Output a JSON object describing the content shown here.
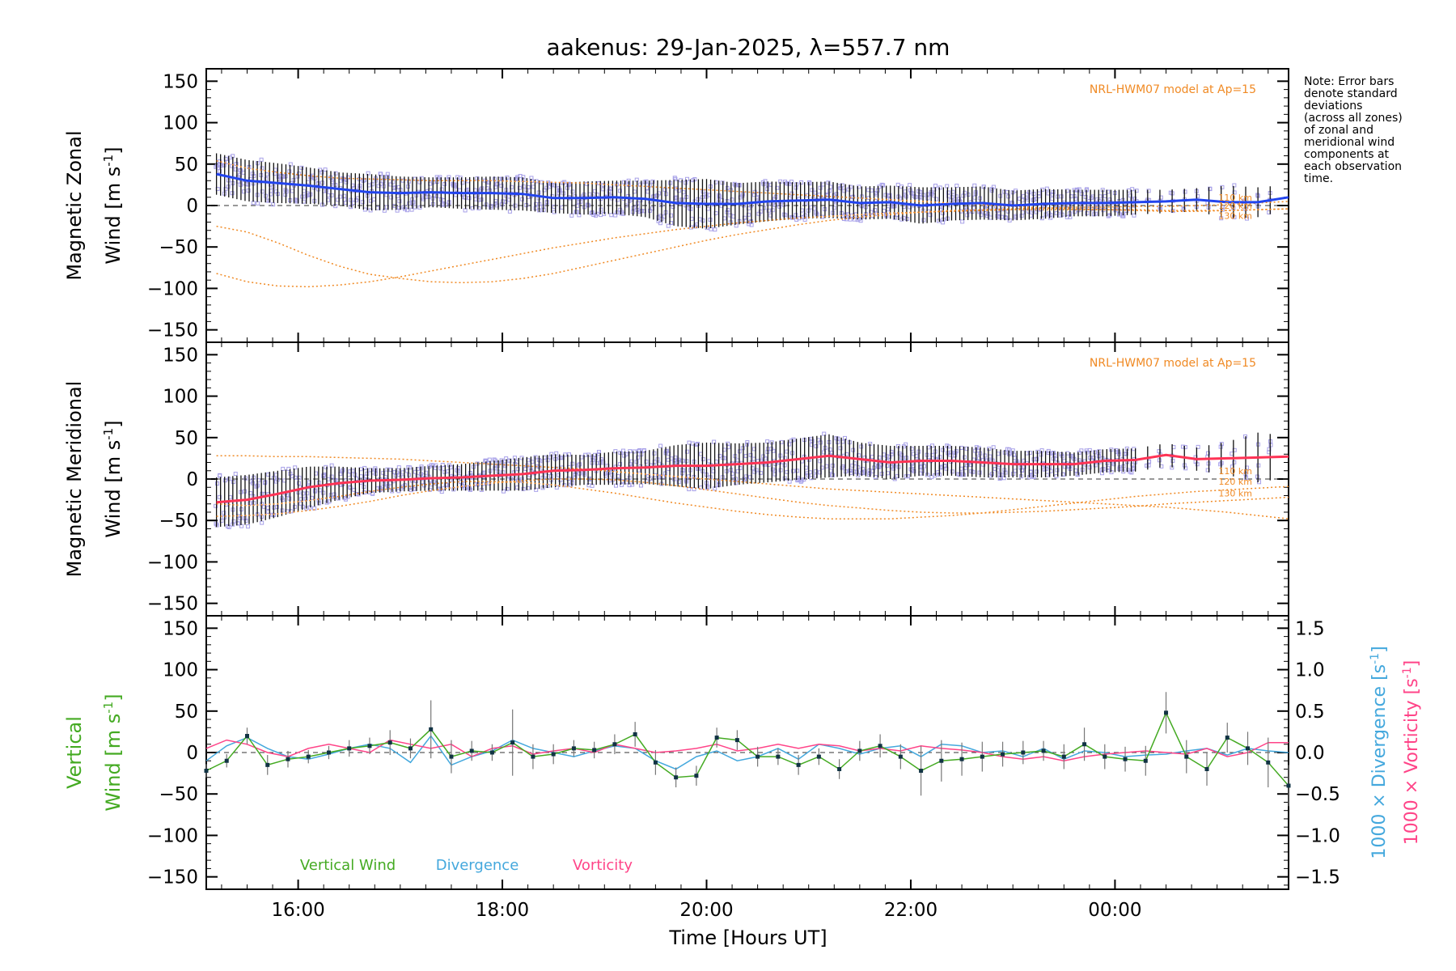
{
  "title": "aakenus: 29-Jan-2025, λ=557.7 nm",
  "note_lines": [
    "Note: Error bars",
    "denote standard",
    "deviations",
    "(across all zones)",
    "of zonal and",
    "meridional wind",
    "components at",
    "each observation",
    "time."
  ],
  "xaxis": {
    "label": "Time [Hours UT]",
    "range": [
      15.1,
      25.7
    ],
    "ticks": [
      16,
      18,
      20,
      22,
      24
    ],
    "tick_labels": [
      "16:00",
      "18:00",
      "20:00",
      "22:00",
      "00:00"
    ]
  },
  "colors": {
    "zonal": "#2244ee",
    "meridional": "#ff3355",
    "model": "#f08a24",
    "scatter": "#a7a0e8",
    "vertical": "#44aa22",
    "divergence": "#44a8dd",
    "vorticity": "#ff4488",
    "errbar": "#111111"
  },
  "chart_data": [
    {
      "type": "line",
      "panel": "zonal",
      "ylabel_line1": "Magnetic Zonal",
      "ylabel_line2": "Wind [m s",
      "ylabel_sup": "-1",
      "ylim": [
        -165,
        165
      ],
      "yticks": [
        -150,
        -100,
        -50,
        0,
        50,
        100,
        150
      ],
      "model_label": "NRL-HWM07 model at Ap=15",
      "model_alt_labels": [
        "110 km",
        "120 km",
        "130 km"
      ],
      "x": [
        15.2,
        15.5,
        15.8,
        16.1,
        16.4,
        16.7,
        17.0,
        17.3,
        17.6,
        17.9,
        18.2,
        18.5,
        18.8,
        19.1,
        19.4,
        19.7,
        20.0,
        20.3,
        20.6,
        20.9,
        21.2,
        21.5,
        21.8,
        22.1,
        22.4,
        22.7,
        23.0,
        23.3,
        23.6,
        23.9,
        24.2,
        24.5,
        24.8,
        25.1,
        25.4,
        25.7
      ],
      "series": [
        {
          "name": "Zonal wind",
          "values": [
            38,
            30,
            27,
            24,
            20,
            16,
            15,
            16,
            15,
            15,
            14,
            9,
            9,
            10,
            8,
            3,
            2,
            2,
            5,
            6,
            7,
            3,
            4,
            0,
            2,
            3,
            0,
            2,
            3,
            3,
            4,
            5,
            7,
            4,
            4,
            10
          ],
          "err": [
            25,
            25,
            24,
            22,
            20,
            22,
            20,
            18,
            19,
            20,
            20,
            18,
            20,
            20,
            22,
            28,
            30,
            25,
            24,
            22,
            22,
            20,
            20,
            22,
            20,
            20,
            18,
            18,
            16,
            16,
            15,
            14,
            14,
            20,
            18,
            15
          ]
        },
        {
          "name": "HWM 110 km",
          "values": [
            -25,
            -32,
            -45,
            -60,
            -73,
            -83,
            -88,
            -92,
            -93,
            -92,
            -88,
            -82,
            -74,
            -66,
            -58,
            -50,
            -42,
            -35,
            -29,
            -23,
            -18,
            -14,
            -11,
            -8,
            -6,
            -5,
            -4,
            -3,
            -2,
            -2,
            -1,
            -1,
            0,
            1,
            3,
            5
          ]
        },
        {
          "name": "HWM 120 km",
          "values": [
            -82,
            -92,
            -97,
            -98,
            -96,
            -92,
            -86,
            -79,
            -72,
            -65,
            -58,
            -51,
            -45,
            -39,
            -34,
            -29,
            -25,
            -21,
            -18,
            -15,
            -13,
            -11,
            -9,
            -8,
            -7,
            -6,
            -5,
            -5,
            -5,
            -5,
            -5,
            -6,
            -6,
            -6,
            -5,
            -4
          ]
        },
        {
          "name": "HWM 130 km",
          "values": [
            54,
            45,
            40,
            36,
            33,
            32,
            31,
            30,
            30,
            30,
            29,
            28,
            27,
            25,
            23,
            21,
            19,
            17,
            15,
            13,
            11,
            9,
            7,
            5,
            3,
            1,
            -1,
            -3,
            -4,
            -5,
            -6,
            -7,
            -7,
            -6,
            -5,
            -4
          ]
        }
      ]
    },
    {
      "type": "line",
      "panel": "meridional",
      "ylabel_line1": "Magnetic Meridional",
      "ylabel_line2": "Wind [m s",
      "ylabel_sup": "-1",
      "ylim": [
        -165,
        165
      ],
      "yticks": [
        -150,
        -100,
        -50,
        0,
        50,
        100,
        150
      ],
      "model_label": "NRL-HWM07 model at Ap=15",
      "model_alt_labels": [
        "110 km",
        "120 km",
        "130 km"
      ],
      "x": [
        15.2,
        15.5,
        15.8,
        16.1,
        16.4,
        16.7,
        17.0,
        17.3,
        17.6,
        17.9,
        18.2,
        18.5,
        18.8,
        19.1,
        19.4,
        19.7,
        20.0,
        20.3,
        20.6,
        20.9,
        21.2,
        21.5,
        21.8,
        22.1,
        22.4,
        22.7,
        23.0,
        23.3,
        23.6,
        23.9,
        24.2,
        24.5,
        24.8,
        25.1,
        25.4,
        25.7
      ],
      "series": [
        {
          "name": "Meridional wind",
          "values": [
            -28,
            -25,
            -18,
            -10,
            -5,
            -2,
            -1,
            1,
            2,
            4,
            6,
            10,
            11,
            13,
            14,
            16,
            16,
            18,
            20,
            24,
            28,
            24,
            20,
            22,
            22,
            20,
            18,
            18,
            18,
            22,
            23,
            29,
            24,
            25,
            26,
            27
          ],
          "err": [
            30,
            30,
            28,
            25,
            20,
            15,
            14,
            15,
            16,
            18,
            20,
            20,
            18,
            20,
            20,
            25,
            28,
            25,
            24,
            25,
            26,
            20,
            20,
            18,
            18,
            18,
            16,
            16,
            14,
            14,
            14,
            14,
            14,
            20,
            30,
            25
          ]
        },
        {
          "name": "HWM 110 km",
          "values": [
            28,
            28,
            27,
            27,
            26,
            25,
            24,
            22,
            20,
            18,
            16,
            14,
            12,
            9,
            6,
            3,
            0,
            -3,
            -6,
            -9,
            -12,
            -14,
            -16,
            -18,
            -20,
            -22,
            -24,
            -26,
            -28,
            -30,
            -32,
            -34,
            -37,
            -40,
            -44,
            -48
          ]
        },
        {
          "name": "HWM 120 km",
          "values": [
            -45,
            -44,
            -42,
            -38,
            -33,
            -27,
            -20,
            -14,
            -9,
            -5,
            -2,
            0,
            0,
            -1,
            -4,
            -8,
            -13,
            -18,
            -23,
            -28,
            -32,
            -35,
            -38,
            -40,
            -41,
            -41,
            -40,
            -39,
            -37,
            -35,
            -33,
            -30,
            -28,
            -26,
            -24,
            -22
          ]
        },
        {
          "name": "HWM 130 km",
          "values": [
            -30,
            -32,
            -30,
            -26,
            -21,
            -15,
            -10,
            -6,
            -3,
            -3,
            -4,
            -7,
            -12,
            -17,
            -23,
            -29,
            -34,
            -39,
            -43,
            -46,
            -48,
            -48,
            -48,
            -46,
            -44,
            -41,
            -37,
            -33,
            -29,
            -25,
            -21,
            -18,
            -15,
            -13,
            -11,
            -9
          ]
        }
      ]
    },
    {
      "type": "line",
      "panel": "vertical",
      "ylabel_line1": "Vertical",
      "ylabel_line2": "Wind [m s",
      "ylabel_sup": "-1",
      "ylim": [
        -165,
        165
      ],
      "yticks": [
        -150,
        -100,
        -50,
        0,
        50,
        100,
        150
      ],
      "y2lim": [
        -1.65,
        1.65
      ],
      "y2ticks": [
        -1.5,
        -1.0,
        -0.5,
        0.0,
        0.5,
        1.0,
        1.5
      ],
      "y2tick_labels": [
        "−1.5",
        "−1.0",
        "−0.5",
        "0.0",
        "0.5",
        "1.0",
        "1.5"
      ],
      "y2label_div": "1000 × Divergence [s",
      "y2label_vor": "1000 × Vorticity [s",
      "y2label_sup": "-1",
      "legend": [
        "Vertical Wind",
        "Divergence",
        "Vorticity"
      ],
      "x": [
        15.1,
        15.3,
        15.5,
        15.7,
        15.9,
        16.1,
        16.3,
        16.5,
        16.7,
        16.9,
        17.1,
        17.3,
        17.5,
        17.7,
        17.9,
        18.1,
        18.3,
        18.5,
        18.7,
        18.9,
        19.1,
        19.3,
        19.5,
        19.7,
        19.9,
        20.1,
        20.3,
        20.5,
        20.7,
        20.9,
        21.1,
        21.3,
        21.5,
        21.7,
        21.9,
        22.1,
        22.3,
        22.5,
        22.7,
        22.9,
        23.1,
        23.3,
        23.5,
        23.7,
        23.9,
        24.1,
        24.3,
        24.5,
        24.7,
        24.9,
        25.1,
        25.3,
        25.5,
        25.7
      ],
      "series": [
        {
          "name": "Vertical Wind",
          "values": [
            -22,
            -10,
            20,
            -15,
            -8,
            -5,
            0,
            5,
            8,
            12,
            5,
            28,
            -5,
            2,
            0,
            12,
            -5,
            -2,
            5,
            3,
            10,
            22,
            -12,
            -30,
            -28,
            18,
            15,
            -5,
            -5,
            -15,
            -5,
            -20,
            2,
            8,
            -5,
            -22,
            -10,
            -8,
            -5,
            -2,
            0,
            2,
            -5,
            10,
            -5,
            -8,
            -10,
            48,
            -5,
            -20,
            18,
            5,
            -12,
            -40
          ],
          "err": [
            8,
            8,
            10,
            12,
            10,
            8,
            8,
            10,
            10,
            15,
            12,
            35,
            20,
            12,
            10,
            40,
            15,
            12,
            10,
            10,
            12,
            15,
            15,
            12,
            12,
            12,
            12,
            12,
            10,
            12,
            10,
            12,
            12,
            14,
            15,
            30,
            25,
            20,
            18,
            15,
            14,
            12,
            15,
            20,
            15,
            15,
            18,
            25,
            20,
            20,
            18,
            20,
            30,
            25
          ]
        },
        {
          "name": "Divergence",
          "values": [
            -0.1,
            0.08,
            0.18,
            0.05,
            -0.05,
            -0.08,
            -0.02,
            0.05,
            0.1,
            0.05,
            -0.12,
            0.2,
            -0.15,
            -0.05,
            0.02,
            0.15,
            0.05,
            0.0,
            -0.05,
            0.02,
            0.08,
            0.05,
            -0.1,
            -0.2,
            -0.05,
            0.02,
            -0.1,
            -0.05,
            0.05,
            -0.08,
            0.1,
            0.05,
            -0.02,
            0.05,
            0.08,
            -0.05,
            0.1,
            0.08,
            0.0,
            0.02,
            -0.05,
            0.05,
            -0.08,
            0.02,
            0.0,
            -0.05,
            -0.03,
            -0.02,
            0.02,
            0.05,
            -0.03,
            0.05,
            0.02,
            0.0
          ]
        },
        {
          "name": "Vorticity",
          "values": [
            0.05,
            0.15,
            0.1,
            0.0,
            -0.05,
            0.05,
            0.1,
            0.05,
            0.0,
            0.15,
            0.1,
            0.05,
            0.1,
            -0.05,
            0.05,
            0.08,
            -0.02,
            0.02,
            0.05,
            0.0,
            0.1,
            0.05,
            0.0,
            0.02,
            0.05,
            0.1,
            0.02,
            0.05,
            0.1,
            0.05,
            0.1,
            0.08,
            0.02,
            0.05,
            0.02,
            0.08,
            0.05,
            0.03,
            0.0,
            -0.05,
            -0.08,
            -0.05,
            -0.1,
            -0.05,
            -0.02,
            0.0,
            0.02,
            0.0,
            -0.02,
            0.05,
            -0.05,
            0.0,
            0.12,
            0.12
          ]
        }
      ]
    }
  ]
}
